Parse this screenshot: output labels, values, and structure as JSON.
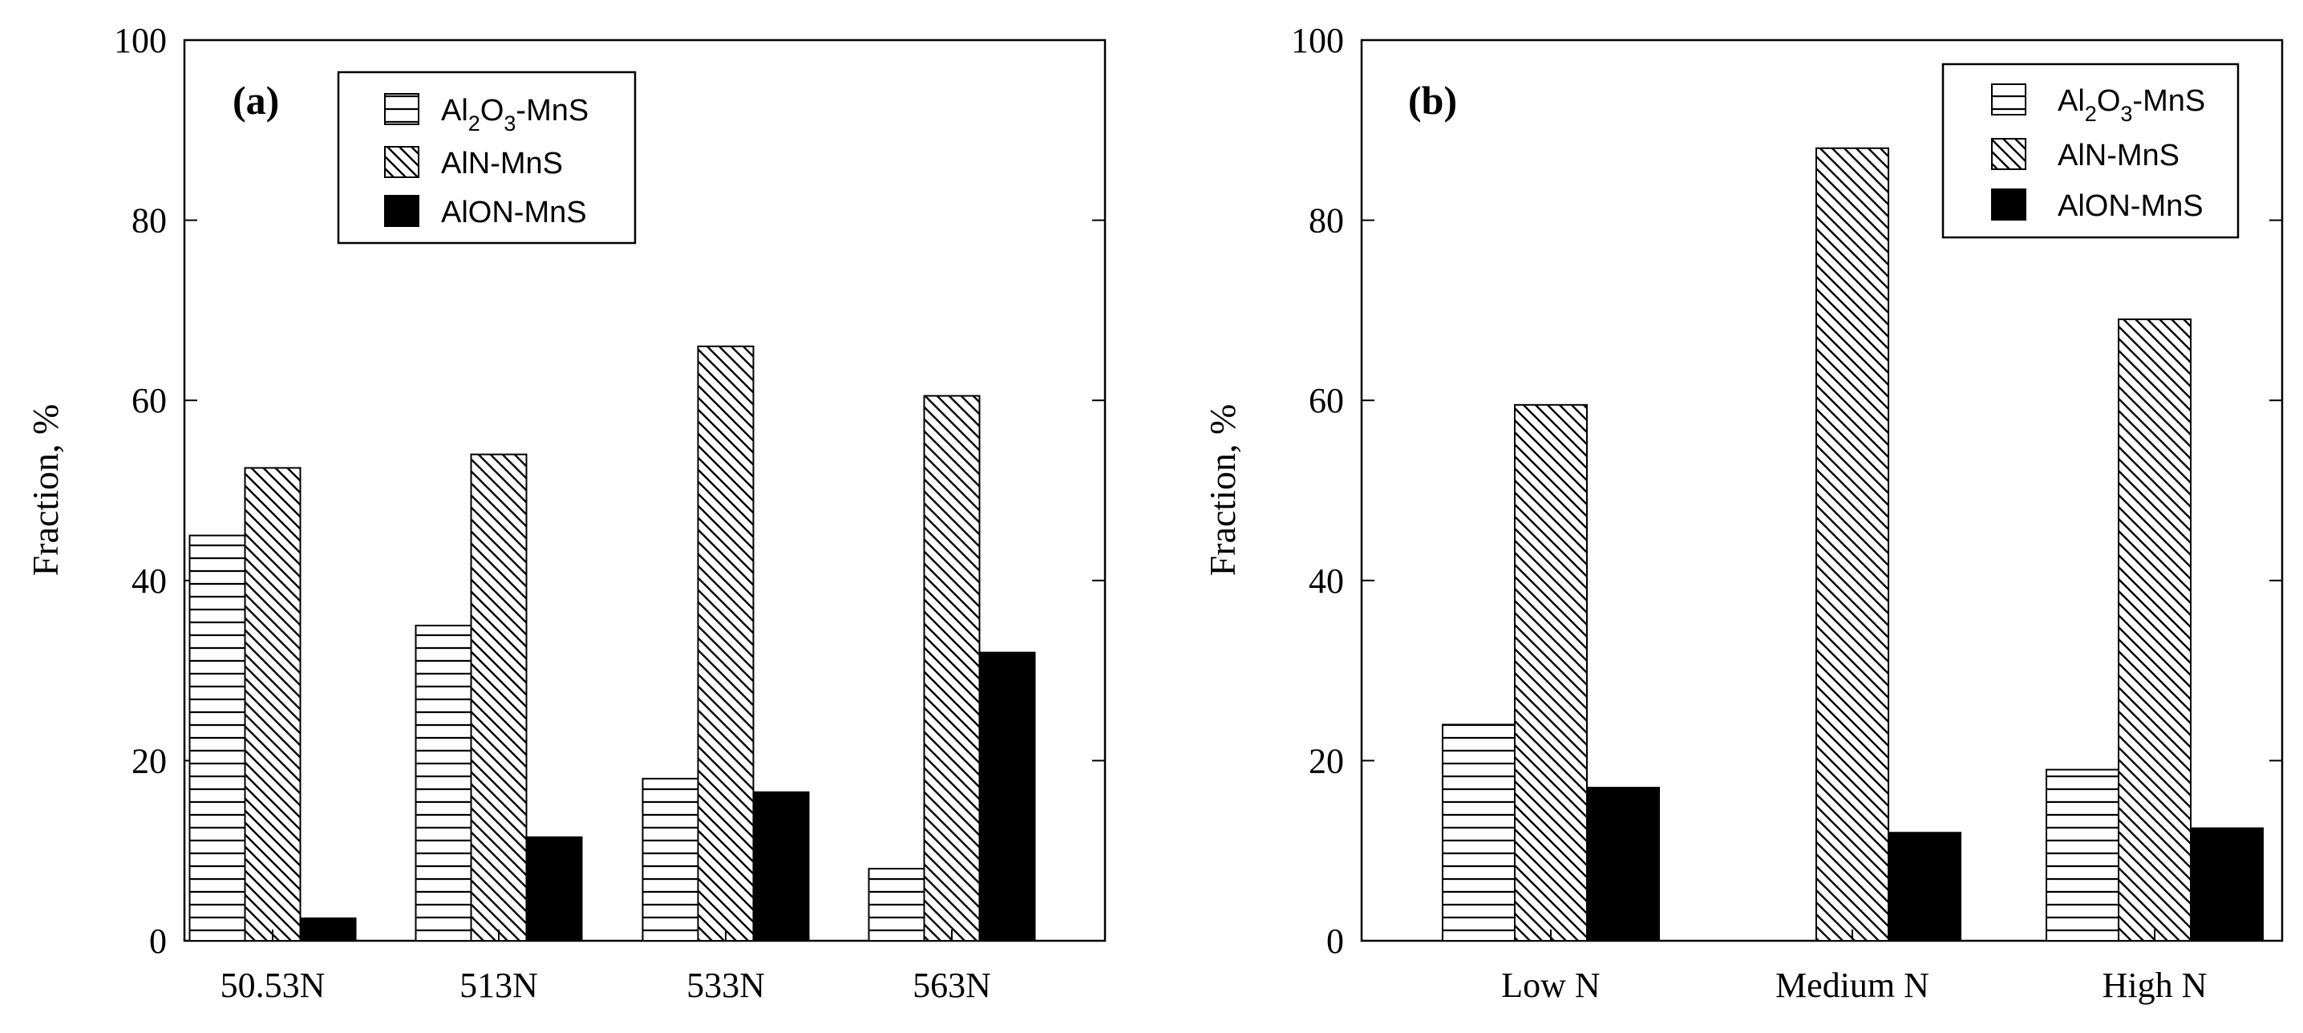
{
  "colors": {
    "ink": "#000000",
    "paper": "#ffffff"
  },
  "chart_data": [
    {
      "type": "bar",
      "panel_label": "(a)",
      "title": "",
      "xlabel": "",
      "ylabel": "Fraction, %",
      "ylim": [
        0,
        100
      ],
      "yticks": [
        "0",
        "20",
        "40",
        "60",
        "80",
        "100"
      ],
      "categories": [
        "50.53N",
        "513N",
        "533N",
        "563N"
      ],
      "legend_position": "top-center",
      "series": [
        {
          "name": "Al2O3-MnS",
          "label_main": "Al",
          "label_sub1": "2",
          "label_mid": "O",
          "label_sub2": "3",
          "label_tail": "-MnS",
          "pattern": "horizontal",
          "values": [
            45,
            35,
            18,
            8
          ]
        },
        {
          "name": "AlN-MnS",
          "label": "AlN-MnS",
          "pattern": "diagonal",
          "values": [
            52.5,
            54,
            66,
            60.5
          ]
        },
        {
          "name": "AlON-MnS",
          "label": "AlON-MnS",
          "pattern": "solid",
          "values": [
            2.5,
            11.5,
            16.5,
            32
          ]
        }
      ]
    },
    {
      "type": "bar",
      "panel_label": "(b)",
      "title": "",
      "xlabel": "",
      "ylabel": "Fraction, %",
      "ylim": [
        0,
        100
      ],
      "yticks": [
        "0",
        "20",
        "40",
        "60",
        "80",
        "100"
      ],
      "categories": [
        "Low N",
        "Medium N",
        "High N"
      ],
      "legend_position": "top-right",
      "series": [
        {
          "name": "Al2O3-MnS",
          "label_main": "Al",
          "label_sub1": "2",
          "label_mid": "O",
          "label_sub2": "3",
          "label_tail": "-MnS",
          "pattern": "horizontal",
          "values": [
            24,
            0,
            19
          ]
        },
        {
          "name": "AlN-MnS",
          "label": "AlN-MnS",
          "pattern": "diagonal",
          "values": [
            59.5,
            88,
            69
          ]
        },
        {
          "name": "AlON-MnS",
          "label": "AlON-MnS",
          "pattern": "solid",
          "values": [
            17,
            12,
            12.5
          ]
        }
      ]
    }
  ]
}
